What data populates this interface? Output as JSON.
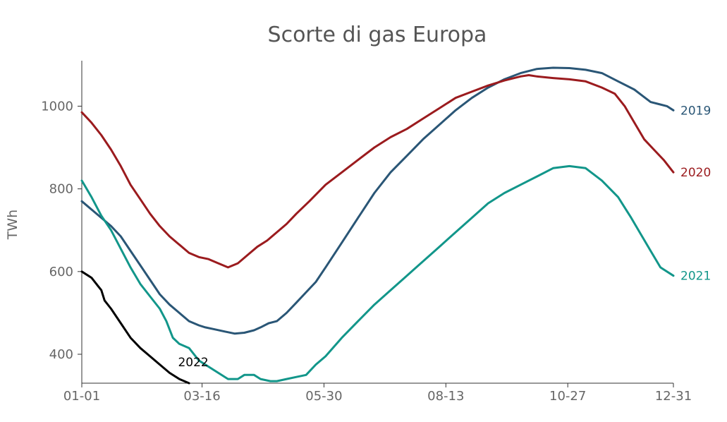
{
  "chart_data": {
    "type": "line",
    "title": "Scorte di gas Europa",
    "xlabel": "",
    "ylabel": "TWh",
    "x_range": [
      0,
      364
    ],
    "ylim": [
      330,
      1110
    ],
    "x_ticks": [
      {
        "label": "01-01",
        "day": 0
      },
      {
        "label": "03-16",
        "day": 74
      },
      {
        "label": "05-30",
        "day": 149
      },
      {
        "label": "08-13",
        "day": 224
      },
      {
        "label": "10-27",
        "day": 299
      },
      {
        "label": "12-31",
        "day": 364
      }
    ],
    "y_ticks": [
      400,
      600,
      800,
      1000
    ],
    "grid": false,
    "legend": "direct labels at line ends",
    "series": [
      {
        "name": "2019",
        "color": "#2a5676",
        "points": [
          [
            0,
            770
          ],
          [
            6,
            750
          ],
          [
            12,
            730
          ],
          [
            18,
            710
          ],
          [
            24,
            685
          ],
          [
            30,
            650
          ],
          [
            36,
            615
          ],
          [
            42,
            580
          ],
          [
            48,
            545
          ],
          [
            54,
            520
          ],
          [
            60,
            500
          ],
          [
            66,
            480
          ],
          [
            72,
            470
          ],
          [
            76,
            465
          ],
          [
            82,
            460
          ],
          [
            88,
            455
          ],
          [
            94,
            450
          ],
          [
            100,
            452
          ],
          [
            106,
            458
          ],
          [
            110,
            465
          ],
          [
            115,
            475
          ],
          [
            120,
            480
          ],
          [
            126,
            500
          ],
          [
            132,
            525
          ],
          [
            138,
            550
          ],
          [
            144,
            575
          ],
          [
            150,
            610
          ],
          [
            160,
            670
          ],
          [
            170,
            730
          ],
          [
            180,
            790
          ],
          [
            190,
            840
          ],
          [
            200,
            880
          ],
          [
            210,
            920
          ],
          [
            220,
            955
          ],
          [
            230,
            990
          ],
          [
            240,
            1020
          ],
          [
            250,
            1045
          ],
          [
            260,
            1065
          ],
          [
            270,
            1080
          ],
          [
            280,
            1090
          ],
          [
            290,
            1093
          ],
          [
            300,
            1092
          ],
          [
            310,
            1088
          ],
          [
            320,
            1080
          ],
          [
            330,
            1060
          ],
          [
            340,
            1040
          ],
          [
            345,
            1025
          ],
          [
            350,
            1010
          ],
          [
            355,
            1005
          ],
          [
            360,
            1000
          ],
          [
            364,
            990
          ]
        ]
      },
      {
        "name": "2020",
        "color": "#9b1b1e",
        "points": [
          [
            0,
            985
          ],
          [
            6,
            960
          ],
          [
            12,
            930
          ],
          [
            18,
            895
          ],
          [
            24,
            855
          ],
          [
            30,
            810
          ],
          [
            36,
            775
          ],
          [
            42,
            740
          ],
          [
            48,
            710
          ],
          [
            54,
            685
          ],
          [
            60,
            665
          ],
          [
            66,
            645
          ],
          [
            72,
            635
          ],
          [
            78,
            630
          ],
          [
            84,
            620
          ],
          [
            90,
            610
          ],
          [
            96,
            620
          ],
          [
            102,
            640
          ],
          [
            108,
            660
          ],
          [
            114,
            675
          ],
          [
            120,
            695
          ],
          [
            126,
            715
          ],
          [
            132,
            740
          ],
          [
            140,
            770
          ],
          [
            150,
            810
          ],
          [
            160,
            840
          ],
          [
            170,
            870
          ],
          [
            180,
            900
          ],
          [
            190,
            925
          ],
          [
            200,
            945
          ],
          [
            210,
            970
          ],
          [
            220,
            995
          ],
          [
            230,
            1020
          ],
          [
            240,
            1035
          ],
          [
            250,
            1050
          ],
          [
            260,
            1062
          ],
          [
            270,
            1072
          ],
          [
            275,
            1075
          ],
          [
            280,
            1072
          ],
          [
            290,
            1068
          ],
          [
            300,
            1065
          ],
          [
            310,
            1060
          ],
          [
            320,
            1045
          ],
          [
            328,
            1030
          ],
          [
            334,
            1000
          ],
          [
            340,
            960
          ],
          [
            346,
            920
          ],
          [
            352,
            895
          ],
          [
            358,
            870
          ],
          [
            364,
            840
          ]
        ]
      },
      {
        "name": "2021",
        "color": "#12968a",
        "points": [
          [
            0,
            820
          ],
          [
            6,
            780
          ],
          [
            12,
            735
          ],
          [
            18,
            700
          ],
          [
            24,
            655
          ],
          [
            30,
            610
          ],
          [
            36,
            570
          ],
          [
            42,
            540
          ],
          [
            48,
            510
          ],
          [
            52,
            480
          ],
          [
            56,
            440
          ],
          [
            60,
            425
          ],
          [
            66,
            415
          ],
          [
            72,
            385
          ],
          [
            78,
            370
          ],
          [
            84,
            355
          ],
          [
            90,
            340
          ],
          [
            96,
            340
          ],
          [
            100,
            350
          ],
          [
            106,
            350
          ],
          [
            110,
            340
          ],
          [
            116,
            335
          ],
          [
            120,
            335
          ],
          [
            126,
            340
          ],
          [
            132,
            345
          ],
          [
            138,
            350
          ],
          [
            144,
            375
          ],
          [
            150,
            395
          ],
          [
            160,
            440
          ],
          [
            170,
            480
          ],
          [
            180,
            520
          ],
          [
            190,
            555
          ],
          [
            200,
            590
          ],
          [
            210,
            625
          ],
          [
            220,
            660
          ],
          [
            230,
            695
          ],
          [
            240,
            730
          ],
          [
            250,
            765
          ],
          [
            260,
            790
          ],
          [
            270,
            810
          ],
          [
            280,
            830
          ],
          [
            290,
            850
          ],
          [
            300,
            855
          ],
          [
            310,
            850
          ],
          [
            320,
            820
          ],
          [
            330,
            780
          ],
          [
            338,
            730
          ],
          [
            344,
            690
          ],
          [
            350,
            650
          ],
          [
            356,
            610
          ],
          [
            364,
            590
          ]
        ]
      },
      {
        "name": "2022",
        "color": "#000000",
        "points": [
          [
            0,
            600
          ],
          [
            6,
            585
          ],
          [
            10,
            565
          ],
          [
            12,
            555
          ],
          [
            14,
            530
          ],
          [
            18,
            510
          ],
          [
            24,
            475
          ],
          [
            30,
            440
          ],
          [
            36,
            415
          ],
          [
            42,
            395
          ],
          [
            48,
            375
          ],
          [
            54,
            355
          ],
          [
            60,
            340
          ],
          [
            66,
            330
          ]
        ]
      }
    ]
  }
}
